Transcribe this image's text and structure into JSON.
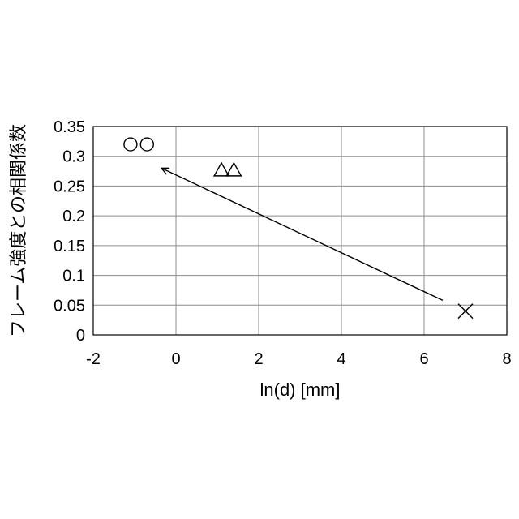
{
  "chart_data": {
    "type": "scatter",
    "xlabel": "ln(d) [mm]",
    "ylabel": "フレーム強度との相関係数",
    "xlim": [
      -2,
      8
    ],
    "ylim": [
      0,
      0.35
    ],
    "xticks": [
      "-2",
      "0",
      "2",
      "4",
      "6",
      "8"
    ],
    "yticks": [
      "0",
      "0.05",
      "0.1",
      "0.15",
      "0.2",
      "0.25",
      "0.3",
      "0.35"
    ],
    "grid": true,
    "series": [
      {
        "marker": "circle",
        "points": [
          [
            -1.1,
            0.32
          ],
          [
            -0.7,
            0.32
          ]
        ]
      },
      {
        "marker": "triangle",
        "points": [
          [
            1.1,
            0.278
          ],
          [
            1.4,
            0.278
          ]
        ]
      },
      {
        "marker": "cross",
        "points": [
          [
            7.0,
            0.04
          ]
        ]
      }
    ],
    "annotations": [
      {
        "type": "arrow",
        "from": [
          6.45,
          0.058
        ],
        "to": [
          -0.35,
          0.28
        ]
      }
    ]
  }
}
